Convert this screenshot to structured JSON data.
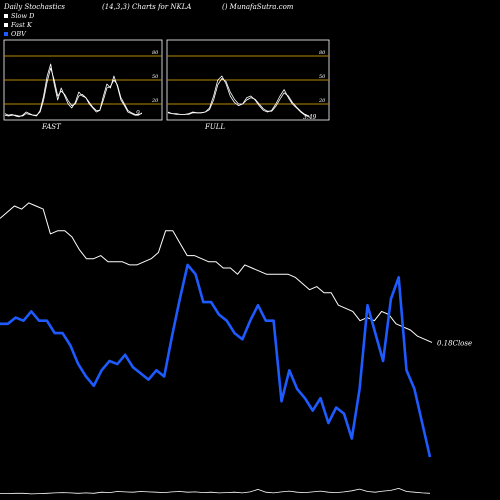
{
  "header": {
    "left": "Daily Stochastics",
    "mid": "(14,3,3) Charts for NKLA",
    "right": "() MunafaSutra.com"
  },
  "legend": [
    {
      "label": "Slow  D",
      "color": "#ffffff"
    },
    {
      "label": "Fast K",
      "color": "#ffffff"
    },
    {
      "label": "OBV",
      "color": "#1e5bff"
    }
  ],
  "colors": {
    "obv": "#1e5bff",
    "price": "#ffffff",
    "level": "#b8860b",
    "panel_border": "#ffffff"
  },
  "chart_data": [
    {
      "type": "line",
      "title": "FAST",
      "ylim": [
        0,
        100
      ],
      "levels": [
        80,
        50,
        20
      ],
      "level_labels": [
        "80",
        "50",
        "20"
      ],
      "last_label": "9",
      "series": [
        {
          "values": [
            8,
            6,
            7,
            5,
            4,
            6,
            10,
            8,
            6,
            5,
            12,
            30,
            55,
            70,
            45,
            25,
            40,
            30,
            20,
            15,
            22,
            35,
            30,
            28,
            20,
            15,
            10,
            12,
            30,
            45,
            40,
            55,
            42,
            25,
            18,
            10,
            8,
            6,
            6,
            9
          ]
        },
        {
          "values": [
            6,
            5,
            6,
            6,
            5,
            5,
            8,
            7,
            6,
            6,
            10,
            25,
            48,
            65,
            50,
            30,
            36,
            32,
            24,
            18,
            20,
            30,
            32,
            28,
            22,
            16,
            12,
            12,
            25,
            40,
            42,
            50,
            44,
            28,
            20,
            12,
            9,
            7,
            7,
            8
          ]
        }
      ]
    },
    {
      "type": "line",
      "title": "FULL",
      "ylim": [
        0,
        100
      ],
      "levels": [
        80,
        50,
        20
      ],
      "level_labels": [
        "80",
        "50",
        "20"
      ],
      "last_label": "3.49",
      "series": [
        {
          "values": [
            10,
            8,
            8,
            7,
            7,
            8,
            10,
            9,
            9,
            10,
            15,
            30,
            50,
            55,
            45,
            30,
            22,
            18,
            20,
            28,
            30,
            25,
            18,
            12,
            10,
            12,
            20,
            30,
            38,
            28,
            20,
            15,
            10,
            6,
            4
          ]
        },
        {
          "values": [
            9,
            8,
            7,
            7,
            7,
            7,
            9,
            9,
            9,
            10,
            13,
            25,
            44,
            52,
            48,
            35,
            26,
            20,
            20,
            25,
            28,
            26,
            20,
            14,
            11,
            11,
            17,
            26,
            34,
            30,
            22,
            16,
            11,
            7,
            5
          ]
        }
      ]
    },
    {
      "type": "line",
      "ylim": [
        0,
        100
      ],
      "last_label": "0.18Close",
      "series": [
        {
          "name": "Close",
          "color": "#ffffff",
          "values": [
            76,
            78,
            80,
            79,
            81,
            80,
            79,
            71,
            72,
            72,
            70,
            66,
            63,
            63,
            64,
            62,
            62,
            62,
            61,
            61,
            62,
            63,
            65,
            72,
            72,
            68,
            64,
            64,
            63,
            62,
            62,
            60,
            60,
            58,
            61,
            60,
            59,
            58,
            58,
            58,
            58,
            57,
            55,
            53,
            54,
            52,
            52,
            48,
            47,
            46,
            43,
            44,
            43,
            46,
            45,
            42,
            41,
            40,
            38,
            37,
            36
          ]
        },
        {
          "name": "OBV",
          "color": "#1e5bff",
          "values": [
            42,
            42,
            44,
            43,
            46,
            43,
            43,
            39,
            39,
            35,
            29,
            25,
            22,
            27,
            30,
            29,
            32,
            28,
            26,
            24,
            27,
            25,
            38,
            50,
            61,
            58,
            49,
            49,
            45,
            43,
            39,
            37,
            43,
            48,
            43,
            43,
            17,
            27,
            21,
            18,
            14,
            18,
            10,
            15,
            13,
            5,
            21,
            48,
            39,
            30,
            50,
            57,
            27,
            21,
            10,
            -1
          ]
        },
        {
          "name": "Stochastic",
          "color": "#ffffff",
          "values": [
            0.4,
            0.4,
            0.5,
            0.5,
            0.3,
            0.4,
            0.5,
            0.6,
            0.7,
            0.6,
            0.5,
            0.6,
            0.5,
            0.8,
            0.7,
            1.0,
            0.9,
            0.8,
            1.0,
            0.9,
            0.8,
            0.7,
            0.9,
            1.0,
            0.8,
            0.9,
            0.7,
            0.8,
            0.6,
            0.7,
            0.8,
            0.6,
            0.9,
            1.6,
            0.8,
            0.6,
            0.9,
            1.1,
            0.8,
            0.7,
            0.9,
            1.1,
            0.8,
            0.7,
            0.9,
            1.2,
            1.7,
            1.0,
            0.8,
            1.1,
            1.3,
            1.9,
            1.0,
            0.8,
            0.6,
            0.5
          ]
        }
      ]
    }
  ]
}
